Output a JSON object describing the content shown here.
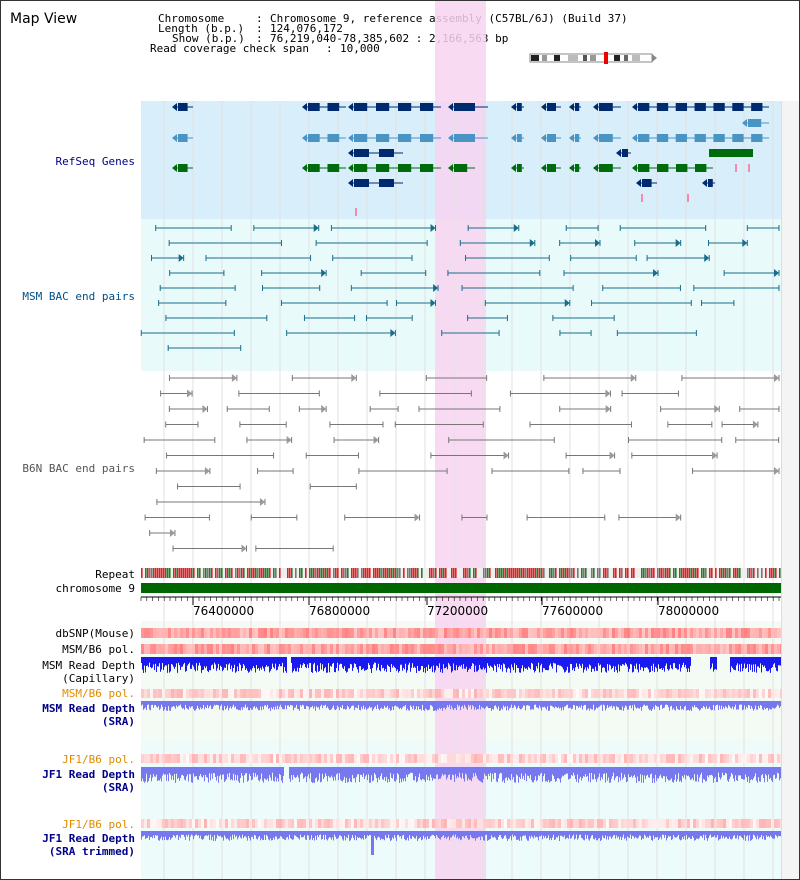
{
  "title": "Map View",
  "header": {
    "rows": [
      {
        "label": "Chromosome",
        "value": "Chromosome 9, reference assembly (C57BL/6J) (Build 37)"
      },
      {
        "label": "Length (b.p.)",
        "value": "124,076,172"
      },
      {
        "label": "Show (b.p.)",
        "value": "76,219,040-78,385,602 : 2,166,563 bp"
      },
      {
        "label": "Read coverage check span",
        "value": "10,000"
      }
    ]
  },
  "tracks": {
    "refseq": "RefSeq Genes",
    "msm_bac": "MSM BAC end pairs",
    "b6n_bac": "B6N BAC end pairs",
    "repeat": "Repeat",
    "chromosome": "chromosome 9",
    "dbsnp": "dbSNP(Mouse)",
    "msm_b6_pol_1": "MSM/B6 pol.",
    "msm_read_depth_cap_1": "MSM Read Depth",
    "msm_read_depth_cap_2": "(Capillary)",
    "msm_b6_pol_2": "MSM/B6 pol.",
    "msm_read_depth_sra_1": "MSM Read Depth",
    "msm_read_depth_sra_2": "(SRA)",
    "jf1_b6_pol_1": "JF1/B6 pol.",
    "jf1_read_depth_sra_1": "JF1 Read Depth",
    "jf1_read_depth_sra_2": "(SRA)",
    "jf1_b6_pol_2": "JF1/B6 pol.",
    "jf1_read_depth_trim_1": "JF1 Read Depth",
    "jf1_read_depth_trim_2": "(SRA trimmed)"
  },
  "axis": {
    "ticks": [
      "76400000",
      "76800000",
      "77200000",
      "77600000",
      "78000000"
    ]
  },
  "colors": {
    "refseq_bg": "#d8eefa",
    "msm_bg": "#e8fafa",
    "highlight": "#f7d4f0",
    "gene_dark": "#002a6e",
    "gene_mid": "#4a94c4",
    "gene_green": "#006b0c",
    "msm_bac": "#1a6d8a",
    "b6n_bac": "#777777",
    "chromosome": "#006600",
    "snp": "#ee7777",
    "depth_blue": "#1a1aee",
    "depth_light": "#7777ee",
    "orange_label": "#e08a00",
    "navy_label": "#00008b"
  }
}
